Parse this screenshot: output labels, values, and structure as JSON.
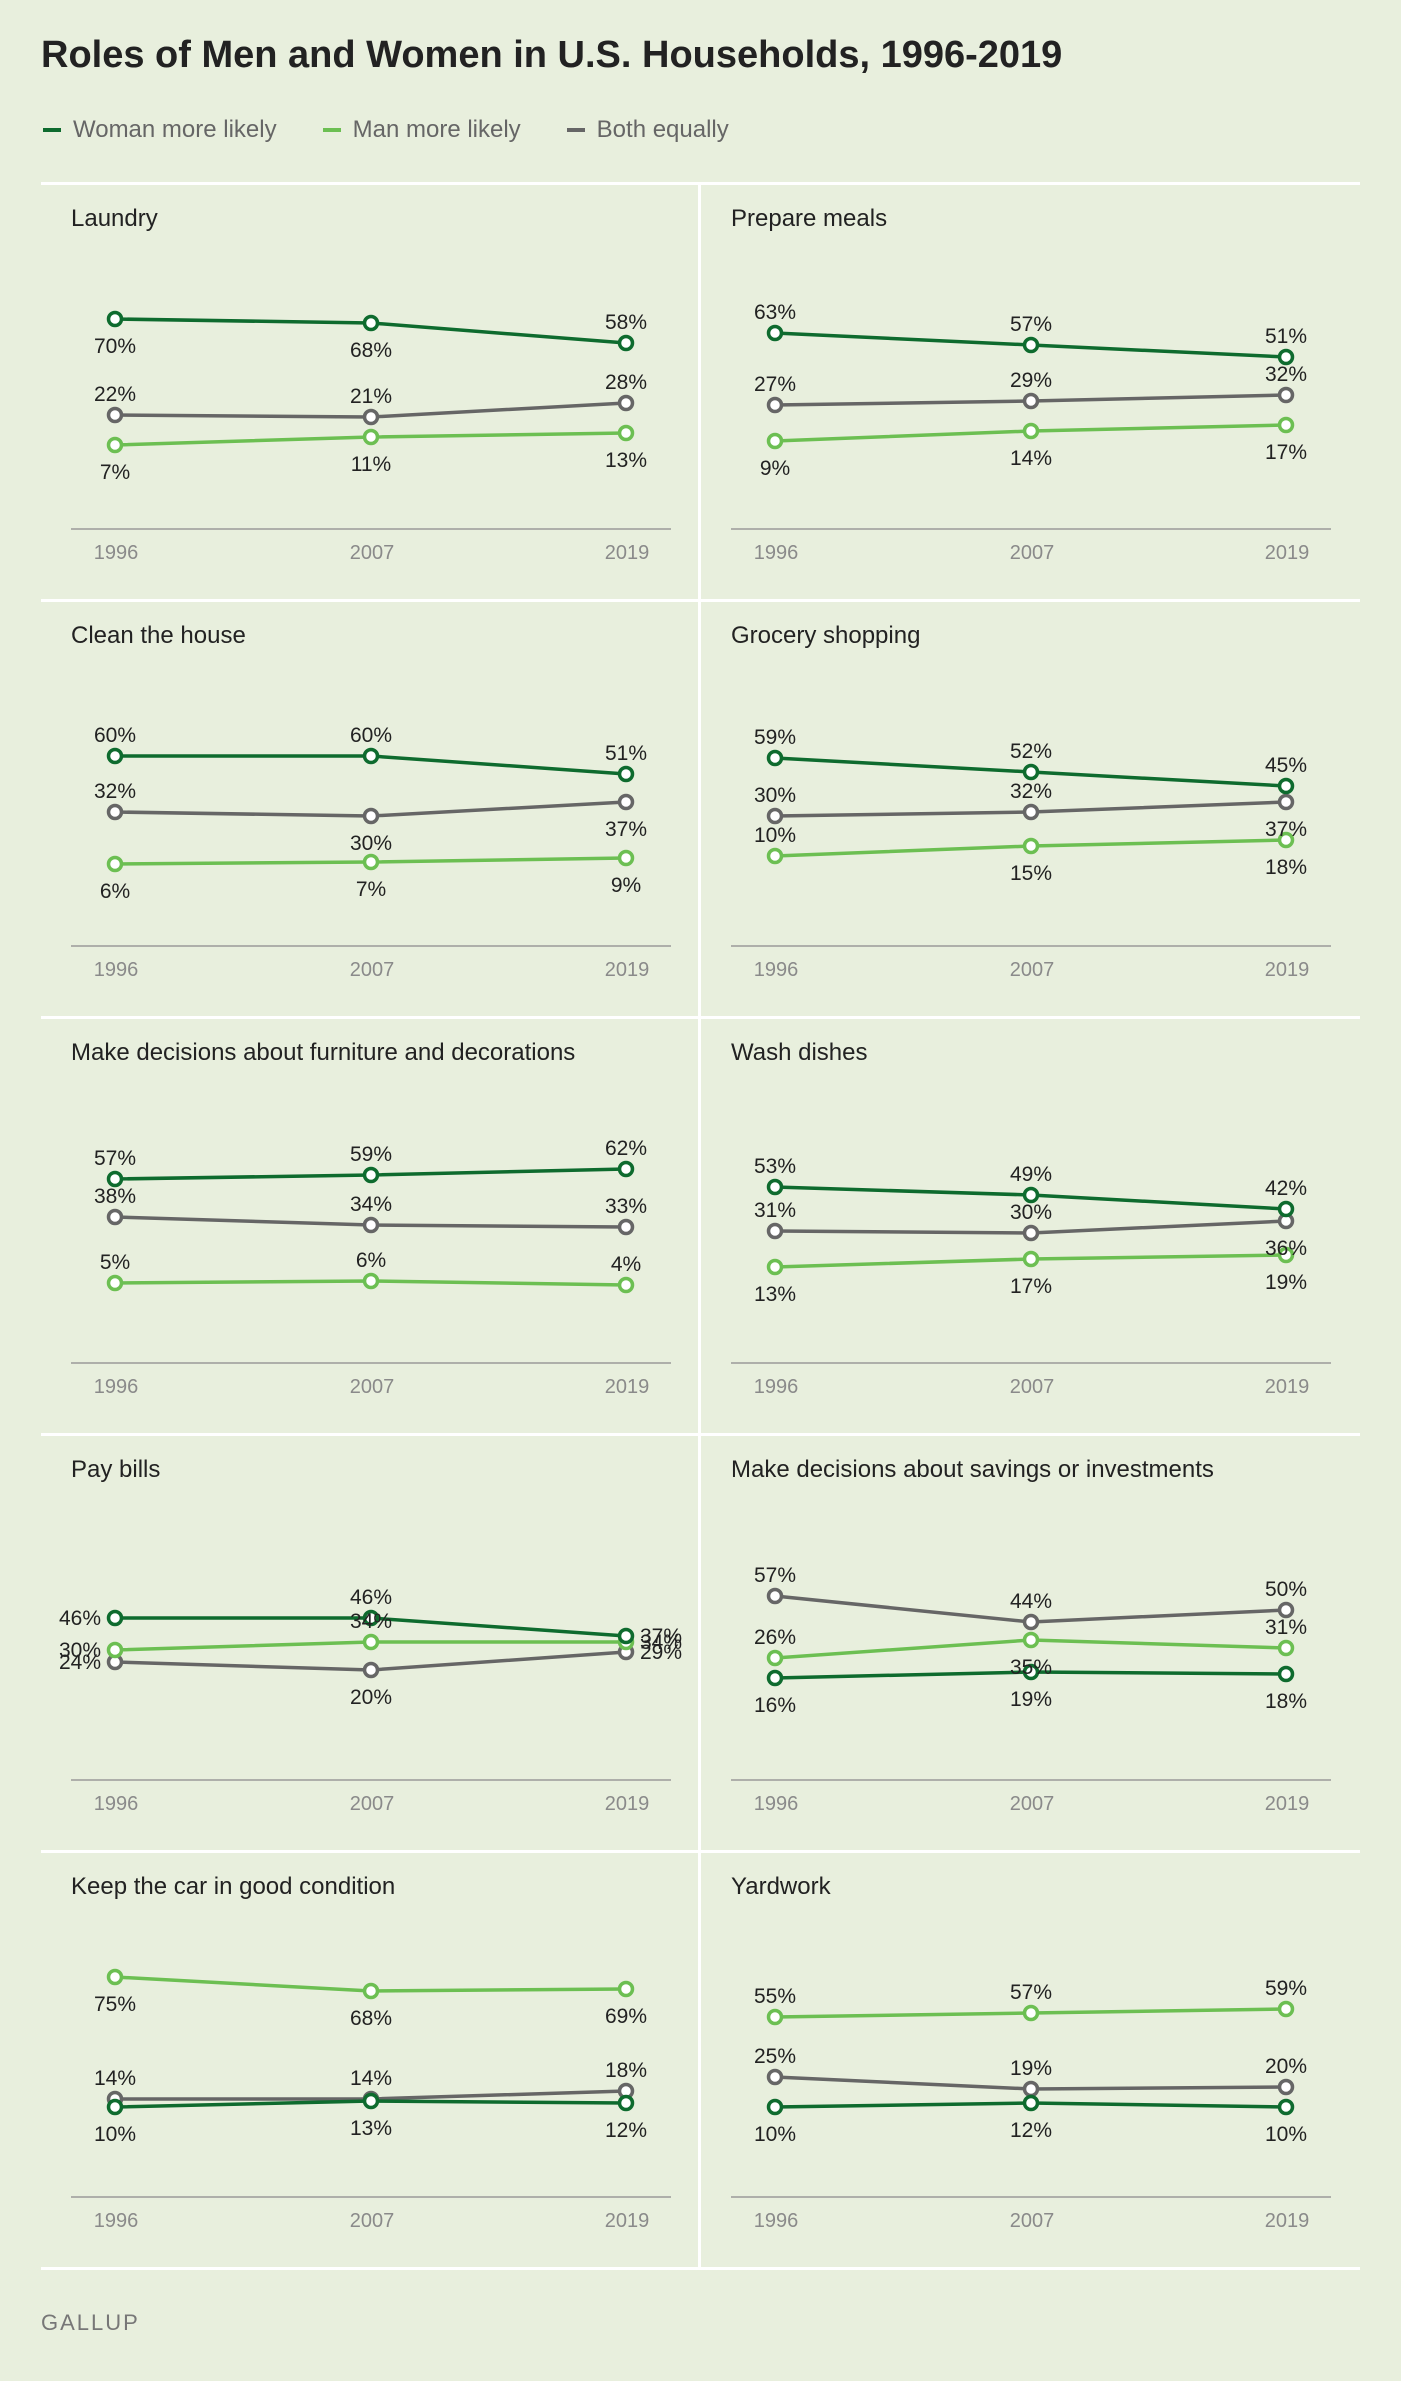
{
  "title": "Roles of Men and Women in U.S. Households, 1996-2019",
  "source": "GALLUP",
  "legend": [
    {
      "key": "woman",
      "label": "Woman more likely",
      "color": "#0e6b2e"
    },
    {
      "key": "man",
      "label": "Man more likely",
      "color": "#6cbf52"
    },
    {
      "key": "both",
      "label": "Both equally",
      "color": "#666666"
    }
  ],
  "chart_data": [
    {
      "type": "line",
      "title": "Laundry",
      "x": [
        "1996",
        "2007",
        "2019"
      ],
      "series": [
        {
          "key": "woman",
          "name": "Woman more likely",
          "values": [
            70,
            68,
            58
          ],
          "labels": [
            "70%",
            "68%",
            "58%"
          ],
          "label_pos": [
            "below",
            "below",
            "above"
          ]
        },
        {
          "key": "man",
          "name": "Man more likely",
          "values": [
            7,
            11,
            13
          ],
          "labels": [
            "7%",
            "11%",
            "13%"
          ],
          "label_pos": [
            "below",
            "below",
            "below"
          ]
        },
        {
          "key": "both",
          "name": "Both equally",
          "values": [
            22,
            21,
            28
          ],
          "labels": [
            "22%",
            "21%",
            "28%"
          ],
          "label_pos": [
            "above",
            "above",
            "above"
          ]
        }
      ]
    },
    {
      "type": "line",
      "title": "Prepare meals",
      "x": [
        "1996",
        "2007",
        "2019"
      ],
      "series": [
        {
          "key": "woman",
          "name": "Woman more likely",
          "values": [
            63,
            57,
            51
          ],
          "labels": [
            "63%",
            "57%",
            "51%"
          ],
          "label_pos": [
            "above",
            "above",
            "above"
          ]
        },
        {
          "key": "man",
          "name": "Man more likely",
          "values": [
            9,
            14,
            17
          ],
          "labels": [
            "9%",
            "14%",
            "17%"
          ],
          "label_pos": [
            "below",
            "below",
            "below"
          ]
        },
        {
          "key": "both",
          "name": "Both equally",
          "values": [
            27,
            29,
            32
          ],
          "labels": [
            "27%",
            "29%",
            "32%"
          ],
          "label_pos": [
            "above",
            "above",
            "above"
          ]
        }
      ]
    },
    {
      "type": "line",
      "title": "Clean the house",
      "x": [
        "1996",
        "2007",
        "2019"
      ],
      "series": [
        {
          "key": "woman",
          "name": "Woman more likely",
          "values": [
            60,
            60,
            51
          ],
          "labels": [
            "60%",
            "60%",
            "51%"
          ],
          "label_pos": [
            "above",
            "above",
            "above"
          ]
        },
        {
          "key": "man",
          "name": "Man more likely",
          "values": [
            6,
            7,
            9
          ],
          "labels": [
            "6%",
            "7%",
            "9%"
          ],
          "label_pos": [
            "below",
            "below",
            "below"
          ]
        },
        {
          "key": "both",
          "name": "Both equally",
          "values": [
            32,
            30,
            37
          ],
          "labels": [
            "32%",
            "30%",
            "37%"
          ],
          "label_pos": [
            "above",
            "below",
            "below"
          ]
        }
      ]
    },
    {
      "type": "line",
      "title": "Grocery shopping",
      "x": [
        "1996",
        "2007",
        "2019"
      ],
      "series": [
        {
          "key": "woman",
          "name": "Woman more likely",
          "values": [
            59,
            52,
            45
          ],
          "labels": [
            "59%",
            "52%",
            "45%"
          ],
          "label_pos": [
            "above",
            "above",
            "above"
          ]
        },
        {
          "key": "man",
          "name": "Man more likely",
          "values": [
            10,
            15,
            18
          ],
          "labels": [
            "10%",
            "15%",
            "18%"
          ],
          "label_pos": [
            "above",
            "below",
            "below"
          ]
        },
        {
          "key": "both",
          "name": "Both equally",
          "values": [
            30,
            32,
            37
          ],
          "labels": [
            "30%",
            "32%",
            "37%"
          ],
          "label_pos": [
            "above",
            "above",
            "below"
          ]
        }
      ]
    },
    {
      "type": "line",
      "title": "Make decisions about furniture and decorations",
      "x": [
        "1996",
        "2007",
        "2019"
      ],
      "series": [
        {
          "key": "woman",
          "name": "Woman more likely",
          "values": [
            57,
            59,
            62
          ],
          "labels": [
            "57%",
            "59%",
            "62%"
          ],
          "label_pos": [
            "above",
            "above",
            "above"
          ]
        },
        {
          "key": "man",
          "name": "Man more likely",
          "values": [
            5,
            6,
            4
          ],
          "labels": [
            "5%",
            "6%",
            "4%"
          ],
          "label_pos": [
            "above",
            "above",
            "above"
          ]
        },
        {
          "key": "both",
          "name": "Both equally",
          "values": [
            38,
            34,
            33
          ],
          "labels": [
            "38%",
            "34%",
            "33%"
          ],
          "label_pos": [
            "above",
            "above",
            "above"
          ]
        }
      ]
    },
    {
      "type": "line",
      "title": "Wash dishes",
      "x": [
        "1996",
        "2007",
        "2019"
      ],
      "series": [
        {
          "key": "woman",
          "name": "Woman more likely",
          "values": [
            53,
            49,
            42
          ],
          "labels": [
            "53%",
            "49%",
            "42%"
          ],
          "label_pos": [
            "above",
            "above",
            "above"
          ]
        },
        {
          "key": "man",
          "name": "Man more likely",
          "values": [
            13,
            17,
            19
          ],
          "labels": [
            "13%",
            "17%",
            "19%"
          ],
          "label_pos": [
            "below",
            "below",
            "below"
          ]
        },
        {
          "key": "both",
          "name": "Both equally",
          "values": [
            31,
            30,
            36
          ],
          "labels": [
            "31%",
            "30%",
            "36%"
          ],
          "label_pos": [
            "above",
            "above",
            "below"
          ]
        }
      ]
    },
    {
      "type": "line",
      "title": "Pay bills",
      "x": [
        "1996",
        "2007",
        "2019"
      ],
      "series": [
        {
          "key": "woman",
          "name": "Woman more likely",
          "values": [
            46,
            46,
            37
          ],
          "labels": [
            "46%",
            "46%",
            "37%"
          ],
          "label_pos": [
            "left",
            "above",
            "right"
          ]
        },
        {
          "key": "man",
          "name": "Man more likely",
          "values": [
            30,
            34,
            34
          ],
          "labels": [
            "30%",
            "34%",
            "34%"
          ],
          "label_pos": [
            "left",
            "above",
            "right"
          ]
        },
        {
          "key": "both",
          "name": "Both equally",
          "values": [
            24,
            20,
            29
          ],
          "labels": [
            "24%",
            "20%",
            "29%"
          ],
          "label_pos": [
            "left",
            "below",
            "right"
          ]
        }
      ]
    },
    {
      "type": "line",
      "title": "Make decisions about savings or investments",
      "x": [
        "1996",
        "2007",
        "2019"
      ],
      "series": [
        {
          "key": "woman",
          "name": "Woman more likely",
          "values": [
            16,
            19,
            18
          ],
          "labels": [
            "16%",
            "19%",
            "18%"
          ],
          "label_pos": [
            "below",
            "below",
            "below"
          ]
        },
        {
          "key": "man",
          "name": "Man more likely",
          "values": [
            26,
            35,
            31
          ],
          "labels": [
            "26%",
            "35%",
            "31%"
          ],
          "label_pos": [
            "above",
            "below",
            "above"
          ]
        },
        {
          "key": "both",
          "name": "Both equally",
          "values": [
            57,
            44,
            50
          ],
          "labels": [
            "57%",
            "44%",
            "50%"
          ],
          "label_pos": [
            "above",
            "above",
            "above"
          ]
        }
      ]
    },
    {
      "type": "line",
      "title": "Keep the car in good condition",
      "x": [
        "1996",
        "2007",
        "2019"
      ],
      "series": [
        {
          "key": "woman",
          "name": "Woman more likely",
          "values": [
            10,
            13,
            12
          ],
          "labels": [
            "10%",
            "13%",
            "12%"
          ],
          "label_pos": [
            "below",
            "below",
            "below"
          ]
        },
        {
          "key": "man",
          "name": "Man more likely",
          "values": [
            75,
            68,
            69
          ],
          "labels": [
            "75%",
            "68%",
            "69%"
          ],
          "label_pos": [
            "below",
            "below",
            "below"
          ]
        },
        {
          "key": "both",
          "name": "Both equally",
          "values": [
            14,
            14,
            18
          ],
          "labels": [
            "14%",
            "14%",
            "18%"
          ],
          "label_pos": [
            "above",
            "above",
            "above"
          ]
        }
      ]
    },
    {
      "type": "line",
      "title": "Yardwork",
      "x": [
        "1996",
        "2007",
        "2019"
      ],
      "series": [
        {
          "key": "woman",
          "name": "Woman more likely",
          "values": [
            10,
            12,
            10
          ],
          "labels": [
            "10%",
            "12%",
            "10%"
          ],
          "label_pos": [
            "below",
            "below",
            "below"
          ]
        },
        {
          "key": "man",
          "name": "Man more likely",
          "values": [
            55,
            57,
            59
          ],
          "labels": [
            "55%",
            "57%",
            "59%"
          ],
          "label_pos": [
            "above",
            "above",
            "above"
          ]
        },
        {
          "key": "both",
          "name": "Both equally",
          "values": [
            25,
            19,
            20
          ],
          "labels": [
            "25%",
            "19%",
            "20%"
          ],
          "label_pos": [
            "above",
            "above",
            "above"
          ]
        }
      ]
    }
  ]
}
